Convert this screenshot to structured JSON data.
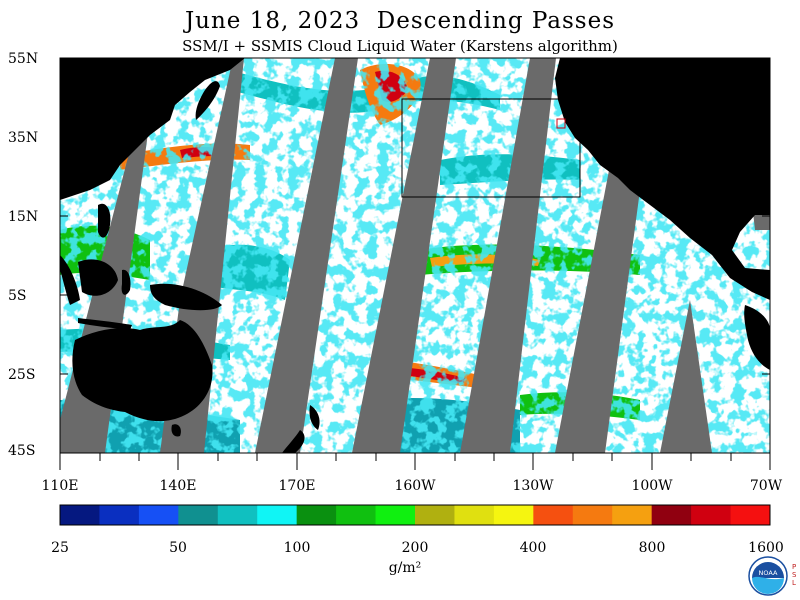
{
  "title": "June 18, 2023  Descending Passes",
  "subtitle": "SSM/I + SSMIS Cloud Liquid Water (Karstens algorithm)",
  "latitude_labels": [
    "55N",
    "35N",
    "15N",
    "5S",
    "25S",
    "45S"
  ],
  "longitude_labels": [
    "110E",
    "140E",
    "170E",
    "160W",
    "130W",
    "100W",
    "70W"
  ],
  "colorbar": {
    "tick_labels": [
      "25",
      "50",
      "100",
      "200",
      "400",
      "800",
      "1600"
    ],
    "colors": [
      "#051880",
      "#0a2fc0",
      "#1650f5",
      "#109090",
      "#10c0c0",
      "#10f5f5",
      "#0a9010",
      "#10c010",
      "#10f010",
      "#b0b010",
      "#e0e010",
      "#f5f510",
      "#f55010",
      "#f57a10",
      "#f5a010",
      "#900010",
      "#d00010",
      "#f51010"
    ]
  },
  "units_label": "g/m²",
  "logo": {
    "text": "NOAA",
    "side_text": "PSL"
  },
  "colors": {
    "land": "#000000",
    "no_data": "#6a6a6a",
    "ocean_clear": "#ffffff"
  }
}
